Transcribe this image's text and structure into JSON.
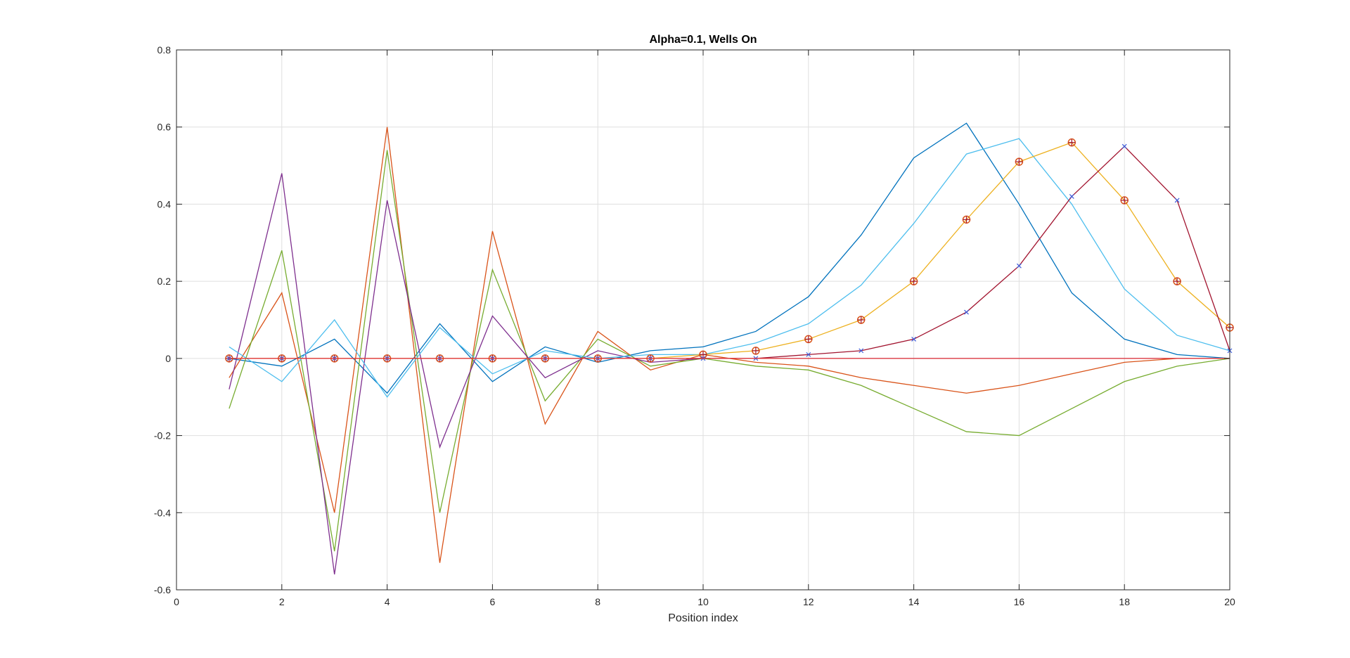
{
  "chart_data": {
    "type": "line",
    "title": "Alpha=0.1, Wells On",
    "xlabel": "Position index",
    "ylabel": "",
    "xlim": [
      0,
      20
    ],
    "ylim": [
      -0.6,
      0.8
    ],
    "xticks": [
      "0",
      "2",
      "4",
      "6",
      "8",
      "10",
      "12",
      "14",
      "16",
      "18",
      "20"
    ],
    "yticks": [
      "-0.6",
      "-0.4",
      "-0.2",
      "0",
      "0.2",
      "0.4",
      "0.6",
      "0.8"
    ],
    "grid": true,
    "x": [
      1,
      2,
      3,
      4,
      5,
      6,
      7,
      8,
      9,
      10,
      11,
      12,
      13,
      14,
      15,
      16,
      17,
      18,
      19,
      20
    ],
    "series": [
      {
        "color": "#0072BD",
        "marker": "none",
        "values": [
          0.0,
          -0.02,
          0.05,
          -0.09,
          0.09,
          -0.06,
          0.03,
          -0.01,
          0.02,
          0.03,
          0.07,
          0.16,
          0.32,
          0.52,
          0.61,
          0.4,
          0.17,
          0.05,
          0.01,
          0.0
        ]
      },
      {
        "color": "#D95319",
        "marker": "none",
        "values": [
          -0.05,
          0.17,
          -0.4,
          0.6,
          -0.53,
          0.33,
          -0.17,
          0.07,
          -0.03,
          0.01,
          -0.01,
          -0.02,
          -0.05,
          -0.07,
          -0.09,
          -0.07,
          -0.04,
          -0.01,
          0.0,
          0.0
        ]
      },
      {
        "color": "#77AC30",
        "marker": "none",
        "values": [
          -0.13,
          0.28,
          -0.5,
          0.54,
          -0.4,
          0.23,
          -0.11,
          0.05,
          -0.02,
          0.0,
          -0.02,
          -0.03,
          -0.07,
          -0.13,
          -0.19,
          -0.2,
          -0.13,
          -0.06,
          -0.02,
          0.0
        ]
      },
      {
        "color": "#7E2F8E",
        "marker": "none",
        "values": [
          -0.08,
          0.48,
          -0.56,
          0.41,
          -0.23,
          0.11,
          -0.05,
          0.02,
          -0.01,
          0.0,
          0.0,
          0.0,
          0.0,
          0.0,
          0.0,
          0.0,
          0.0,
          0.0,
          0.0,
          0.0
        ]
      },
      {
        "color": "#4DBEEE",
        "marker": "none",
        "values": [
          0.03,
          -0.06,
          0.1,
          -0.1,
          0.08,
          -0.04,
          0.02,
          0.0,
          0.01,
          0.01,
          0.04,
          0.09,
          0.19,
          0.35,
          0.53,
          0.57,
          0.4,
          0.18,
          0.06,
          0.02
        ]
      },
      {
        "color": "#EDB120",
        "marker": "circle-plus",
        "values": [
          0.0,
          0.0,
          0.0,
          0.0,
          0.0,
          0.0,
          0.0,
          0.0,
          0.0,
          0.01,
          0.02,
          0.05,
          0.1,
          0.2,
          0.36,
          0.51,
          0.56,
          0.41,
          0.2,
          0.08
        ]
      },
      {
        "color": "#A2142F",
        "marker": "x",
        "values": [
          0.0,
          0.0,
          0.0,
          0.0,
          0.0,
          0.0,
          0.0,
          0.0,
          0.0,
          0.0,
          0.0,
          0.01,
          0.02,
          0.05,
          0.12,
          0.24,
          0.42,
          0.55,
          0.41,
          0.02
        ]
      },
      {
        "color": "#E63B3B",
        "marker": "none",
        "values": [
          0.0,
          0.0,
          0.0,
          0.0,
          0.0,
          0.0,
          0.0,
          0.0,
          0.0,
          0.0,
          0.0,
          0.0,
          0.0,
          0.0,
          0.0,
          0.0,
          0.0,
          0.0,
          0.0,
          0.0
        ]
      }
    ]
  }
}
